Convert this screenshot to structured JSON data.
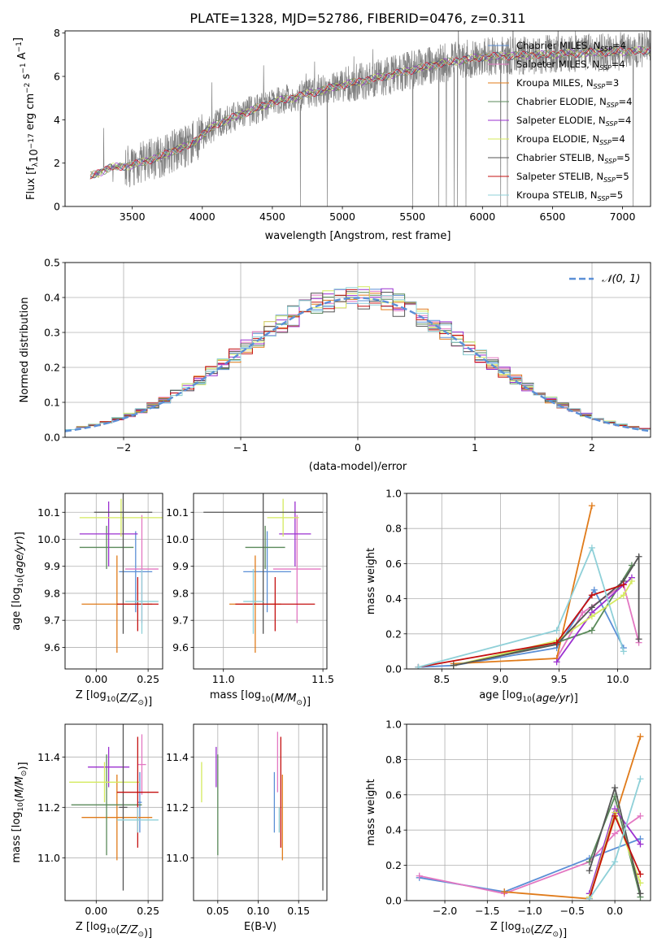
{
  "figure": {
    "title": "PLATE=1328, MJD=52786, FIBERID=0476, z=0.311"
  },
  "palette": [
    "#5b8fd6",
    "#e377c2",
    "#e07b1a",
    "#5a8a5a",
    "#9b30d0",
    "#d4ea5e",
    "#555555",
    "#c41010",
    "#8fd0d8"
  ],
  "chart_data": [
    {
      "id": "spectrum",
      "type": "line",
      "xlabel": "wavelength [Angstrom, rest frame]",
      "ylabel": "Flux [f_λ 10^-17 erg cm^-2 s^-1 A^-1]",
      "xlim": [
        3020,
        7200
      ],
      "ylim": [
        0,
        8.1
      ],
      "xticks": [
        3500,
        4000,
        4500,
        5000,
        5500,
        6000,
        6500,
        7000
      ],
      "yticks": [
        0,
        2,
        4,
        6,
        8
      ],
      "legend_position": "top-right",
      "data_range": [
        3200,
        7200
      ],
      "continuum": [
        [
          3200,
          1.4
        ],
        [
          3350,
          1.8
        ],
        [
          3500,
          1.9
        ],
        [
          3700,
          2.3
        ],
        [
          3800,
          2.6
        ],
        [
          3900,
          2.8
        ],
        [
          4000,
          3.3
        ],
        [
          4100,
          3.8
        ],
        [
          4300,
          4.3
        ],
        [
          4500,
          4.8
        ],
        [
          4700,
          5.1
        ],
        [
          5000,
          5.6
        ],
        [
          5300,
          6.0
        ],
        [
          5700,
          6.6
        ],
        [
          6000,
          6.9
        ],
        [
          6400,
          7.0
        ],
        [
          6800,
          7.1
        ],
        [
          7200,
          7.2
        ]
      ],
      "series": [
        {
          "name": "Chabrier MILES, N_SSP=4",
          "label": "Chabrier MILES, N",
          "sub": "SSP",
          "suffix": "=4"
        },
        {
          "name": "Salpeter MILES, N_SSP=4",
          "label": "Salpeter MILES, N",
          "sub": "SSP",
          "suffix": "=4"
        },
        {
          "name": "Kroupa MILES, N_SSP=3",
          "label": "Kroupa MILES, N",
          "sub": "SSP",
          "suffix": "=3"
        },
        {
          "name": "Chabrier ELODIE, N_SSP=4",
          "label": "Chabrier ELODIE, N",
          "sub": "SSP",
          "suffix": "=4"
        },
        {
          "name": "Salpeter ELODIE, N_SSP=4",
          "label": "Salpeter ELODIE, N",
          "sub": "SSP",
          "suffix": "=4"
        },
        {
          "name": "Kroupa ELODIE, N_SSP=4",
          "label": "Kroupa ELODIE, N",
          "sub": "SSP",
          "suffix": "=4"
        },
        {
          "name": "Chabrier STELIB, N_SSP=5",
          "label": "Chabrier STELIB, N",
          "sub": "SSP",
          "suffix": "=5"
        },
        {
          "name": "Salpeter STELIB, N_SSP=5",
          "label": "Salpeter STELIB, N",
          "sub": "SSP",
          "suffix": "=5"
        },
        {
          "name": "Kroupa STELIB, N_SSP=5",
          "label": "Kroupa STELIB, N",
          "sub": "SSP",
          "suffix": "=5"
        }
      ]
    },
    {
      "id": "residuals",
      "type": "histogram",
      "xlabel": "(data-model)/error",
      "ylabel": "Normed distribution",
      "xlim": [
        -2.5,
        2.5
      ],
      "ylim": [
        0,
        0.5
      ],
      "xticks": [
        -2,
        -1,
        0,
        1,
        2
      ],
      "yticks": [
        0.0,
        0.1,
        0.2,
        0.3,
        0.4,
        0.5
      ],
      "grid": true,
      "bin_width": 0.1,
      "legend": "𝒩(0, 1)",
      "legend_position": "top-right"
    },
    {
      "id": "age_vs_Z",
      "type": "errorbar",
      "xlabel": "Z [log10(Z/Zsun)]",
      "ylabel": "age [log10(age/yr)]",
      "xlim": [
        -0.15,
        0.32
      ],
      "ylim": [
        9.52,
        10.17
      ],
      "xticks": [
        0.0,
        0.25
      ],
      "yticks": [
        9.6,
        9.7,
        9.8,
        9.9,
        10.0,
        10.1
      ],
      "grid": true,
      "points": [
        {
          "x": 0.19,
          "xerr": 0.08,
          "y": 9.88,
          "yerr": 0.15
        },
        {
          "x": 0.22,
          "xerr": 0.08,
          "y": 9.89,
          "yerr": 0.2
        },
        {
          "x": 0.1,
          "xerr": 0.17,
          "y": 9.76,
          "yerr": 0.18
        },
        {
          "x": 0.05,
          "xerr": 0.13,
          "y": 9.97,
          "yerr": 0.08
        },
        {
          "x": 0.06,
          "xerr": 0.14,
          "y": 10.02,
          "yerr": 0.12
        },
        {
          "x": 0.12,
          "xerr": 0.2,
          "y": 10.08,
          "yerr": 0.07
        },
        {
          "x": 0.13,
          "xerr": 0.14,
          "y": 10.1,
          "yerr": 0.45
        },
        {
          "x": 0.2,
          "xerr": 0.1,
          "y": 9.76,
          "yerr": 0.1
        },
        {
          "x": 0.22,
          "xerr": 0.08,
          "y": 9.77,
          "yerr": 0.12
        }
      ]
    },
    {
      "id": "age_vs_mass",
      "type": "errorbar",
      "xlabel": "mass [log10(M/Msun)]",
      "ylabel": "",
      "xlim": [
        10.85,
        11.52
      ],
      "ylim": [
        9.52,
        10.17
      ],
      "xticks": [
        11.0,
        11.5
      ],
      "yticks": [
        9.6,
        9.7,
        9.8,
        9.9,
        10.0,
        10.1
      ],
      "grid": true,
      "points": [
        {
          "x": 11.22,
          "xerr": 0.12,
          "y": 9.88,
          "yerr": 0.15
        },
        {
          "x": 11.37,
          "xerr": 0.12,
          "y": 9.89,
          "yerr": 0.2
        },
        {
          "x": 11.16,
          "xerr": 0.13,
          "y": 9.76,
          "yerr": 0.18
        },
        {
          "x": 11.21,
          "xerr": 0.1,
          "y": 9.97,
          "yerr": 0.08
        },
        {
          "x": 11.36,
          "xerr": 0.08,
          "y": 10.02,
          "yerr": 0.12
        },
        {
          "x": 11.3,
          "xerr": 0.08,
          "y": 10.08,
          "yerr": 0.07
        },
        {
          "x": 11.2,
          "xerr": 0.3,
          "y": 10.1,
          "yerr": 0.45
        },
        {
          "x": 11.26,
          "xerr": 0.2,
          "y": 9.76,
          "yerr": 0.1
        },
        {
          "x": 11.15,
          "xerr": 0.05,
          "y": 9.77,
          "yerr": 0.12
        }
      ]
    },
    {
      "id": "weight_vs_age",
      "type": "line",
      "xlabel": "age [log10(age/yr)]",
      "ylabel": "mass weight",
      "xlim": [
        8.2,
        10.28
      ],
      "ylim": [
        0,
        1.0
      ],
      "xticks": [
        8.5,
        9.0,
        9.5,
        10.0
      ],
      "yticks": [
        0.0,
        0.2,
        0.4,
        0.6,
        0.8,
        1.0
      ],
      "grid": true,
      "series": [
        {
          "x": [
            8.3,
            8.6,
            9.48,
            9.8,
            10.05
          ],
          "y": [
            0.01,
            0.02,
            0.12,
            0.45,
            0.12
          ]
        },
        {
          "x": [
            9.48,
            9.7,
            10.05,
            10.18
          ],
          "y": [
            0.06,
            0.32,
            0.48,
            0.15
          ]
        },
        {
          "x": [
            8.6,
            9.48,
            9.78
          ],
          "y": [
            0.03,
            0.06,
            0.93
          ]
        },
        {
          "x": [
            8.6,
            9.48,
            9.78,
            10.12
          ],
          "y": [
            0.02,
            0.15,
            0.22,
            0.59
          ]
        },
        {
          "x": [
            9.48,
            9.78,
            10.12
          ],
          "y": [
            0.04,
            0.32,
            0.52
          ]
        },
        {
          "x": [
            8.6,
            9.48,
            9.78,
            10.05,
            10.12
          ],
          "y": [
            0.02,
            0.16,
            0.3,
            0.42,
            0.5
          ]
        },
        {
          "x": [
            8.6,
            9.48,
            9.78,
            10.05,
            10.18,
            10.18
          ],
          "y": [
            0.02,
            0.14,
            0.35,
            0.5,
            0.64,
            0.17
          ]
        },
        {
          "x": [
            8.3,
            9.48,
            9.78,
            10.05
          ],
          "y": [
            0.01,
            0.15,
            0.42,
            0.48
          ]
        },
        {
          "x": [
            8.3,
            9.48,
            9.78,
            10.05
          ],
          "y": [
            0.01,
            0.22,
            0.69,
            0.1
          ]
        }
      ]
    },
    {
      "id": "mass_vs_Z",
      "type": "errorbar",
      "xlabel": "Z [log10(Z/Zsun)]",
      "ylabel": "mass [log10(M/Msun)]",
      "xlim": [
        -0.15,
        0.32
      ],
      "ylim": [
        10.83,
        11.53
      ],
      "xticks": [
        0.0,
        0.25
      ],
      "yticks": [
        11.0,
        11.2,
        11.4
      ],
      "grid": true,
      "points": [
        {
          "x": 0.21,
          "xerr": 0.01,
          "y": 11.22,
          "yerr": 0.12
        },
        {
          "x": 0.22,
          "xerr": 0.02,
          "y": 11.37,
          "yerr": 0.12
        },
        {
          "x": 0.1,
          "xerr": 0.17,
          "y": 11.16,
          "yerr": 0.17
        },
        {
          "x": 0.05,
          "xerr": 0.17,
          "y": 11.21,
          "yerr": 0.2
        },
        {
          "x": 0.06,
          "xerr": 0.1,
          "y": 11.36,
          "yerr": 0.08
        },
        {
          "x": 0.04,
          "xerr": 0.17,
          "y": 11.3,
          "yerr": 0.08
        },
        {
          "x": 0.13,
          "xerr": 0.02,
          "y": 11.2,
          "yerr": 0.33
        },
        {
          "x": 0.2,
          "xerr": 0.1,
          "y": 11.26,
          "yerr": 0.22
        },
        {
          "x": 0.2,
          "xerr": 0.1,
          "y": 11.15,
          "yerr": 0.05
        }
      ]
    },
    {
      "id": "mass_vs_EBV",
      "type": "errorbar",
      "xlabel": "E(B-V)",
      "ylabel": "",
      "xlim": [
        0.02,
        0.185
      ],
      "ylim": [
        10.83,
        11.53
      ],
      "xticks": [
        0.05,
        0.1,
        0.15
      ],
      "yticks": [
        11.0,
        11.2,
        11.4
      ],
      "grid": true,
      "points": [
        {
          "x": 0.12,
          "yerr": 0.12,
          "y": 11.22
        },
        {
          "x": 0.124,
          "yerr": 0.12,
          "y": 11.38
        },
        {
          "x": 0.13,
          "yerr": 0.17,
          "y": 11.16
        },
        {
          "x": 0.05,
          "yerr": 0.2,
          "y": 11.21
        },
        {
          "x": 0.048,
          "yerr": 0.08,
          "y": 11.36
        },
        {
          "x": 0.03,
          "yerr": 0.08,
          "y": 11.3
        },
        {
          "x": 0.18,
          "yerr": 0.33,
          "y": 11.2
        },
        {
          "x": 0.128,
          "yerr": 0.22,
          "y": 11.26
        },
        {
          "x": 0.126,
          "yerr": 0.05,
          "y": 11.15
        }
      ]
    },
    {
      "id": "weight_vs_Z",
      "type": "line",
      "xlabel": "Z [log10(Z/Zsun)]",
      "ylabel": "mass weight",
      "xlim": [
        -2.45,
        0.42
      ],
      "ylim": [
        0,
        1.0
      ],
      "xticks": [
        -2.0,
        -1.5,
        -1.0,
        -0.5,
        0.0
      ],
      "yticks": [
        0.0,
        0.2,
        0.4,
        0.6,
        0.8,
        1.0
      ],
      "grid": true,
      "series": [
        {
          "x": [
            -2.3,
            -1.3,
            -0.3,
            0.3
          ],
          "y": [
            0.13,
            0.05,
            0.24,
            0.35
          ]
        },
        {
          "x": [
            -2.3,
            -1.3,
            -0.3,
            0.0,
            0.3
          ],
          "y": [
            0.14,
            0.04,
            0.22,
            0.38,
            0.48
          ]
        },
        {
          "x": [
            -1.3,
            -0.3,
            0.3
          ],
          "y": [
            0.05,
            0.01,
            0.93
          ]
        },
        {
          "x": [
            -0.3,
            0.0,
            0.3
          ],
          "y": [
            0.22,
            0.59,
            0.02
          ]
        },
        {
          "x": [
            -0.3,
            0.0,
            0.3
          ],
          "y": [
            0.04,
            0.52,
            0.32
          ]
        },
        {
          "x": [
            -0.3,
            0.0,
            0.3
          ],
          "y": [
            0.02,
            0.5,
            0.1
          ]
        },
        {
          "x": [
            -0.3,
            0.0,
            0.3
          ],
          "y": [
            0.17,
            0.64,
            0.04
          ]
        },
        {
          "x": [
            -0.3,
            0.0,
            0.3
          ],
          "y": [
            0.01,
            0.48,
            0.15
          ]
        },
        {
          "x": [
            -0.3,
            0.0,
            0.3
          ],
          "y": [
            0.01,
            0.22,
            0.69
          ]
        }
      ]
    }
  ]
}
